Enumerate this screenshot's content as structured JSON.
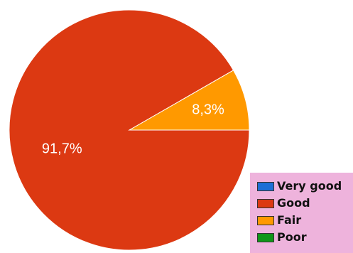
{
  "chart_data": {
    "type": "pie",
    "title": "",
    "slices": [
      {
        "name": "Very good",
        "value": 0,
        "label": "",
        "color": "#1c6fd6"
      },
      {
        "name": "Good",
        "value": 91.7,
        "label": "91,7%",
        "color": "#dc3912"
      },
      {
        "name": "Fair",
        "value": 8.3,
        "label": "8,3%",
        "color": "#ff9900"
      },
      {
        "name": "Poor",
        "value": 0,
        "label": "",
        "color": "#109618"
      }
    ],
    "legend": {
      "placement": "bottom-right",
      "background": "#eeb3dc",
      "items": [
        "Very good",
        "Good",
        "Fair",
        "Poor"
      ]
    }
  }
}
